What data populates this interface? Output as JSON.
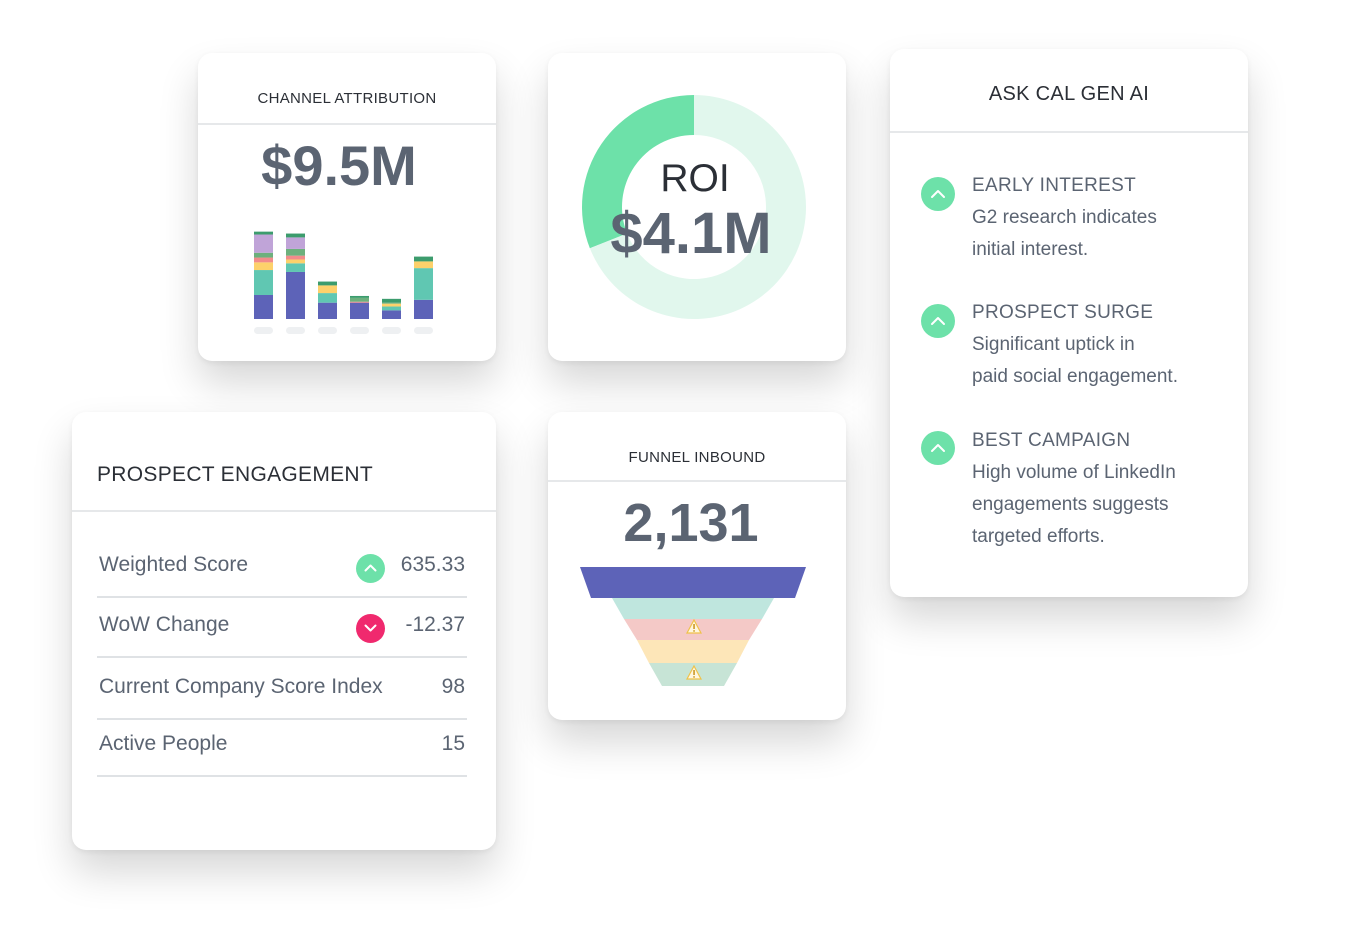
{
  "channel_attribution": {
    "title": "CHANNEL ATTRIBUTION",
    "value": "$9.5M",
    "chart_data": {
      "type": "bar",
      "stacked": true,
      "categories": [
        "",
        "",
        "",
        "",
        "",
        ""
      ],
      "series": [
        {
          "color": "#5d63b8",
          "values": [
            25,
            49,
            17,
            17,
            9,
            20
          ]
        },
        {
          "color": "#60c7b2",
          "values": [
            26,
            9,
            10,
            0,
            4,
            33
          ]
        },
        {
          "color": "#fdd16b",
          "values": [
            8,
            4,
            8,
            0,
            3,
            7
          ]
        },
        {
          "color": "#f28b8b",
          "values": [
            5,
            4,
            0,
            1,
            0,
            0
          ]
        },
        {
          "color": "#6db07d",
          "values": [
            5,
            7,
            0,
            4,
            1,
            0
          ]
        },
        {
          "color": "#c0a4d8",
          "values": [
            19,
            12,
            0,
            0,
            0,
            0
          ]
        },
        {
          "color": "#3c9c6d",
          "values": [
            3,
            4,
            4,
            2,
            4,
            5
          ]
        }
      ]
    }
  },
  "roi": {
    "label": "ROI",
    "value": "$4.1M",
    "chart_data": {
      "type": "pie",
      "donut": true,
      "slices": [
        {
          "value": 31,
          "color": "#6de1a9"
        },
        {
          "value": 69,
          "color": "#e1f7ed"
        }
      ]
    }
  },
  "ask_ai": {
    "title": "ASK CAL GEN AI",
    "items": [
      {
        "heading": "EARLY INTEREST",
        "line1": "G2 research indicates",
        "line2": "initial interest.",
        "line3": ""
      },
      {
        "heading": "PROSPECT SURGE",
        "line1": "Significant uptick in",
        "line2": "paid social engagement.",
        "line3": ""
      },
      {
        "heading": "BEST CAMPAIGN",
        "line1": "High volume of LinkedIn",
        "line2": "engagements suggests",
        "line3": "targeted efforts."
      }
    ]
  },
  "prospect_engagement": {
    "title": "PROSPECT ENGAGEMENT",
    "rows": [
      {
        "label": "Weighted Score",
        "value": "635.33",
        "trend": "up"
      },
      {
        "label": "WoW Change",
        "value": "-12.37",
        "trend": "down"
      },
      {
        "label": "Current Company Score Index",
        "value": "98",
        "trend": ""
      },
      {
        "label": "Active People",
        "value": "15",
        "trend": ""
      }
    ]
  },
  "funnel": {
    "title": "FUNNEL INBOUND",
    "value": "2,131",
    "stages": [
      {
        "color": "#5d63b8",
        "warning": false
      },
      {
        "color": "#bfe6de",
        "warning": false
      },
      {
        "color": "#f4c9c7",
        "warning": true
      },
      {
        "color": "#fde6b8",
        "warning": false
      },
      {
        "color": "#c7e4d6",
        "warning": true
      }
    ]
  },
  "colors": {
    "accent_green": "#6de1a9",
    "accent_pink": "#f0296e",
    "text": "#5b6472"
  }
}
